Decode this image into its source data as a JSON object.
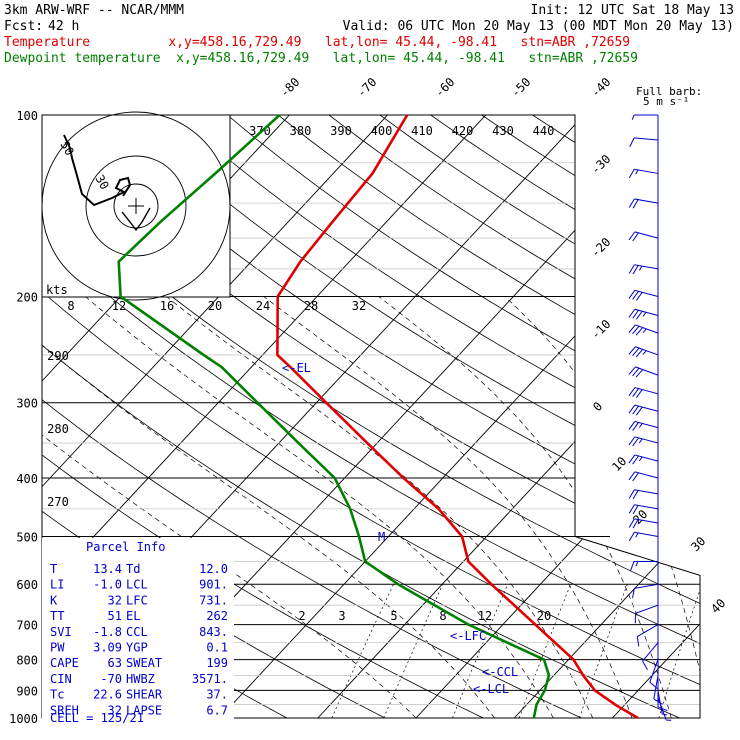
{
  "header": {
    "model": "3km ARW-WRF -- NCAR/MMM",
    "fcst_label": "Fcst:",
    "fcst_value": "42 h",
    "init": "Init: 12 UTC Sat 18 May 13",
    "valid": "Valid: 06 UTC Mon 20 May 13 (00 MDT Mon 20 May 13)",
    "temp_line": "Temperature          x,y=458.16,729.49   lat,lon= 45.44, -98.41   stn=ABR ,72659",
    "dew_line": "Dewpoint temperature  x,y=458.16,729.49   lat,lon= 45.44, -98.41   stn=ABR ,72659",
    "full_barb_1": "Full barb:",
    "full_barb_2": "5 m s⁻¹",
    "colors": {
      "temperature": "#e00000",
      "dewpoint": "#008000",
      "wind": "#0000cc",
      "info": "#0000cc"
    }
  },
  "chart_data": {
    "type": "line",
    "subtype": "skew-T log-p sounding",
    "pressure_levels_hPa": [
      "100",
      "200",
      "300",
      "400",
      "500",
      "600",
      "700",
      "800",
      "900",
      "1000"
    ],
    "isotherm_labels_C": [
      "-80",
      "-70",
      "-60",
      "-50",
      "-40",
      "-30",
      "-20",
      "-10",
      "0",
      "10",
      "20",
      "30",
      "40"
    ],
    "theta_labels_K": [
      "370",
      "380",
      "390",
      "400",
      "410",
      "420",
      "430",
      "440"
    ],
    "theta_lower_labels": [
      "290",
      "280",
      "270"
    ],
    "mixing_ratio_labels": [
      "2",
      "3",
      "5",
      "8",
      "12",
      "20"
    ],
    "hodograph_speed_labels": [
      "8",
      "12",
      "16",
      "20",
      "24",
      "28",
      "32"
    ],
    "hodograph_ring_labels": [
      "50",
      "30"
    ],
    "hodograph_units": "kts",
    "series": [
      {
        "name": "Temperature",
        "color": "#e00000",
        "points": [
          [
            1000,
            22.6
          ],
          [
            950,
            19.0
          ],
          [
            900,
            15.6
          ],
          [
            850,
            13.0
          ],
          [
            800,
            10.5
          ],
          [
            700,
            3.3
          ],
          [
            600,
            -5.0
          ],
          [
            550,
            -9.5
          ],
          [
            500,
            -12.5
          ],
          [
            450,
            -17.5
          ],
          [
            400,
            -24.0
          ],
          [
            350,
            -31.0
          ],
          [
            300,
            -39.0
          ],
          [
            262,
            -46.0
          ],
          [
            250,
            -48.5
          ],
          [
            200,
            -54.0
          ],
          [
            175,
            -55.0
          ],
          [
            150,
            -55.5
          ],
          [
            125,
            -56.0
          ],
          [
            100,
            -58.0
          ]
        ]
      },
      {
        "name": "Dewpoint temperature",
        "color": "#008000",
        "points": [
          [
            1000,
            12.0
          ],
          [
            950,
            11.0
          ],
          [
            900,
            10.5
          ],
          [
            850,
            9.5
          ],
          [
            800,
            7.5
          ],
          [
            700,
            -3.5
          ],
          [
            600,
            -14.5
          ],
          [
            550,
            -20.0
          ],
          [
            500,
            -23.0
          ],
          [
            450,
            -26.5
          ],
          [
            400,
            -31.0
          ],
          [
            350,
            -38.0
          ],
          [
            300,
            -46.0
          ],
          [
            262,
            -53.0
          ],
          [
            250,
            -56.0
          ],
          [
            200,
            -70.0
          ],
          [
            175,
            -73.5
          ],
          [
            150,
            -73.0
          ],
          [
            125,
            -72.0
          ],
          [
            100,
            -71.0
          ]
        ]
      }
    ],
    "annotations": [
      "<-EL",
      "<-LFC",
      "<-CCL",
      "<-LCL",
      "M"
    ],
    "parcel_info_title": "Parcel Info",
    "parcel_info": [
      {
        "l1": "T",
        "v1": "13.4",
        "l2": "Td",
        "v2": "12.0"
      },
      {
        "l1": "LI",
        "v1": "-1.0",
        "l2": "LCL",
        "v2": "901."
      },
      {
        "l1": "K",
        "v1": "32",
        "l2": "LFC",
        "v2": "731."
      },
      {
        "l1": "TT",
        "v1": "51",
        "l2": "EL",
        "v2": "262"
      },
      {
        "l1": "SVI",
        "v1": "-1.8",
        "l2": "CCL",
        "v2": "843."
      },
      {
        "l1": "PW",
        "v1": "3.09",
        "l2": "YGP",
        "v2": "0.1"
      },
      {
        "l1": "CAPE",
        "v1": "63",
        "l2": "SWEAT",
        "v2": "199"
      },
      {
        "l1": "CIN",
        "v1": "-70",
        "l2": "HWBZ",
        "v2": "3571."
      },
      {
        "l1": "Tc",
        "v1": "22.6",
        "l2": "SHEAR",
        "v2": "37."
      },
      {
        "l1": "SREH",
        "v1": "32",
        "l2": "LAPSE",
        "v2": "6.7"
      }
    ],
    "cell": "CELL = 125/21",
    "wind_barbs": [
      {
        "p": 100,
        "speed": 5,
        "dir": 270
      },
      {
        "p": 110,
        "speed": 10,
        "dir": 275
      },
      {
        "p": 125,
        "speed": 15,
        "dir": 280
      },
      {
        "p": 140,
        "speed": 20,
        "dir": 280
      },
      {
        "p": 160,
        "speed": 20,
        "dir": 285
      },
      {
        "p": 180,
        "speed": 25,
        "dir": 280
      },
      {
        "p": 200,
        "speed": 30,
        "dir": 285
      },
      {
        "p": 215,
        "speed": 35,
        "dir": 285
      },
      {
        "p": 230,
        "speed": 35,
        "dir": 290
      },
      {
        "p": 250,
        "speed": 35,
        "dir": 290
      },
      {
        "p": 270,
        "speed": 30,
        "dir": 290
      },
      {
        "p": 290,
        "speed": 30,
        "dir": 285
      },
      {
        "p": 310,
        "speed": 30,
        "dir": 285
      },
      {
        "p": 330,
        "speed": 25,
        "dir": 285
      },
      {
        "p": 350,
        "speed": 25,
        "dir": 285
      },
      {
        "p": 375,
        "speed": 25,
        "dir": 285
      },
      {
        "p": 400,
        "speed": 20,
        "dir": 285
      },
      {
        "p": 425,
        "speed": 20,
        "dir": 280
      },
      {
        "p": 450,
        "speed": 20,
        "dir": 280
      },
      {
        "p": 475,
        "speed": 20,
        "dir": 280
      },
      {
        "p": 500,
        "speed": 15,
        "dir": 280
      },
      {
        "p": 550,
        "speed": 15,
        "dir": 270
      },
      {
        "p": 600,
        "speed": 10,
        "dir": 260
      },
      {
        "p": 650,
        "speed": 10,
        "dir": 250
      },
      {
        "p": 700,
        "speed": 10,
        "dir": 240
      },
      {
        "p": 750,
        "speed": 10,
        "dir": 220
      },
      {
        "p": 800,
        "speed": 10,
        "dir": 200
      },
      {
        "p": 850,
        "speed": 10,
        "dir": 190
      },
      {
        "p": 875,
        "speed": 10,
        "dir": 180
      },
      {
        "p": 900,
        "speed": 5,
        "dir": 170
      },
      {
        "p": 925,
        "speed": 5,
        "dir": 160
      }
    ]
  }
}
